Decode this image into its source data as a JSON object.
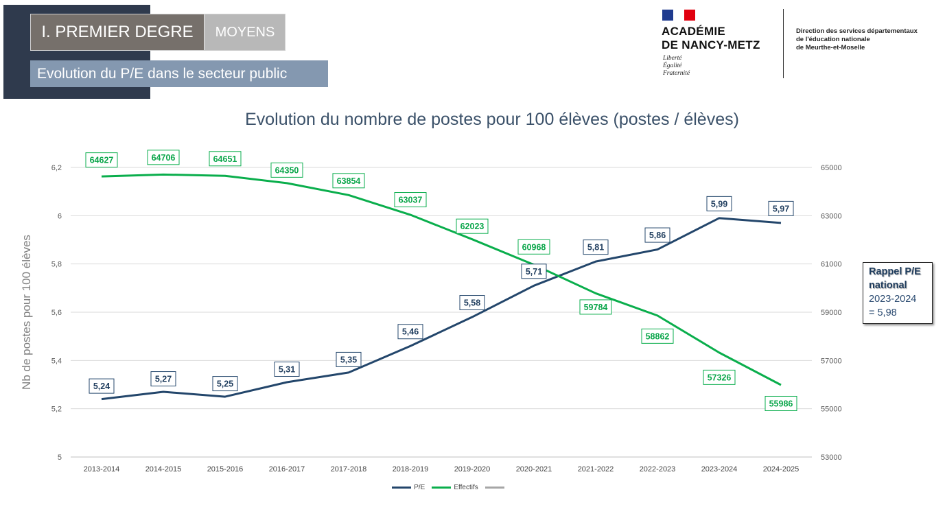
{
  "header": {
    "section": "I. PREMIER DEGRE",
    "category": "MOYENS",
    "subtitle": "Evolution du P/E dans le secteur public"
  },
  "logo": {
    "academy_line1": "ACADÉMIE",
    "academy_line2": "DE NANCY-METZ",
    "motto": [
      "Liberté",
      "Égalité",
      "Fraternité"
    ],
    "direction": [
      "Direction des services départementaux",
      "de l'éducation nationale",
      "de Meurthe-et-Moselle"
    ]
  },
  "rappel": {
    "title_line1": "Rappel P/E",
    "title_line2": "national",
    "year": "2023-2024",
    "value": "= 5,98"
  },
  "chart_data": {
    "type": "line",
    "title": "Evolution du nombre de postes pour 100 élèves (postes / élèves)",
    "ylabel": "Nb de postes pour 100 élèves",
    "categories": [
      "2013-2014",
      "2014-2015",
      "2015-2016",
      "2016-2017",
      "2017-2018",
      "2018-2019",
      "2019-2020",
      "2020-2021",
      "2021-2022",
      "2022-2023",
      "2023-2024",
      "2024-2025"
    ],
    "ylim": [
      5,
      6.2
    ],
    "y_ticks": [
      "5",
      "5,2",
      "5,4",
      "5,6",
      "5,8",
      "6",
      "6,2"
    ],
    "y2lim": [
      53000,
      65000
    ],
    "y2_ticks": [
      "53000",
      "55000",
      "57000",
      "59000",
      "61000",
      "63000",
      "65000"
    ],
    "grid": true,
    "legend_position": "bottom",
    "series": [
      {
        "name": "P/E",
        "axis": "left",
        "color": "#23466b",
        "values": [
          5.24,
          5.27,
          5.25,
          5.31,
          5.35,
          5.46,
          5.58,
          5.71,
          5.81,
          5.86,
          5.99,
          5.97
        ],
        "labels": [
          "5,24",
          "5,27",
          "5,25",
          "5,31",
          "5,35",
          "5,46",
          "5,58",
          "5,71",
          "5,81",
          "5,86",
          "5,99",
          "5,97"
        ]
      },
      {
        "name": "Effectifs",
        "axis": "right",
        "color": "#0aae4c",
        "values": [
          64627,
          64706,
          64651,
          64350,
          63854,
          63037,
          62023,
          60968,
          59784,
          58862,
          57326,
          55986
        ],
        "labels": [
          "64627",
          "64706",
          "64651",
          "64350",
          "63854",
          "63037",
          "62023",
          "60968",
          "59784",
          "58862",
          "57326",
          "55986"
        ]
      }
    ],
    "legend_extra_color": "#a6a6a6"
  }
}
